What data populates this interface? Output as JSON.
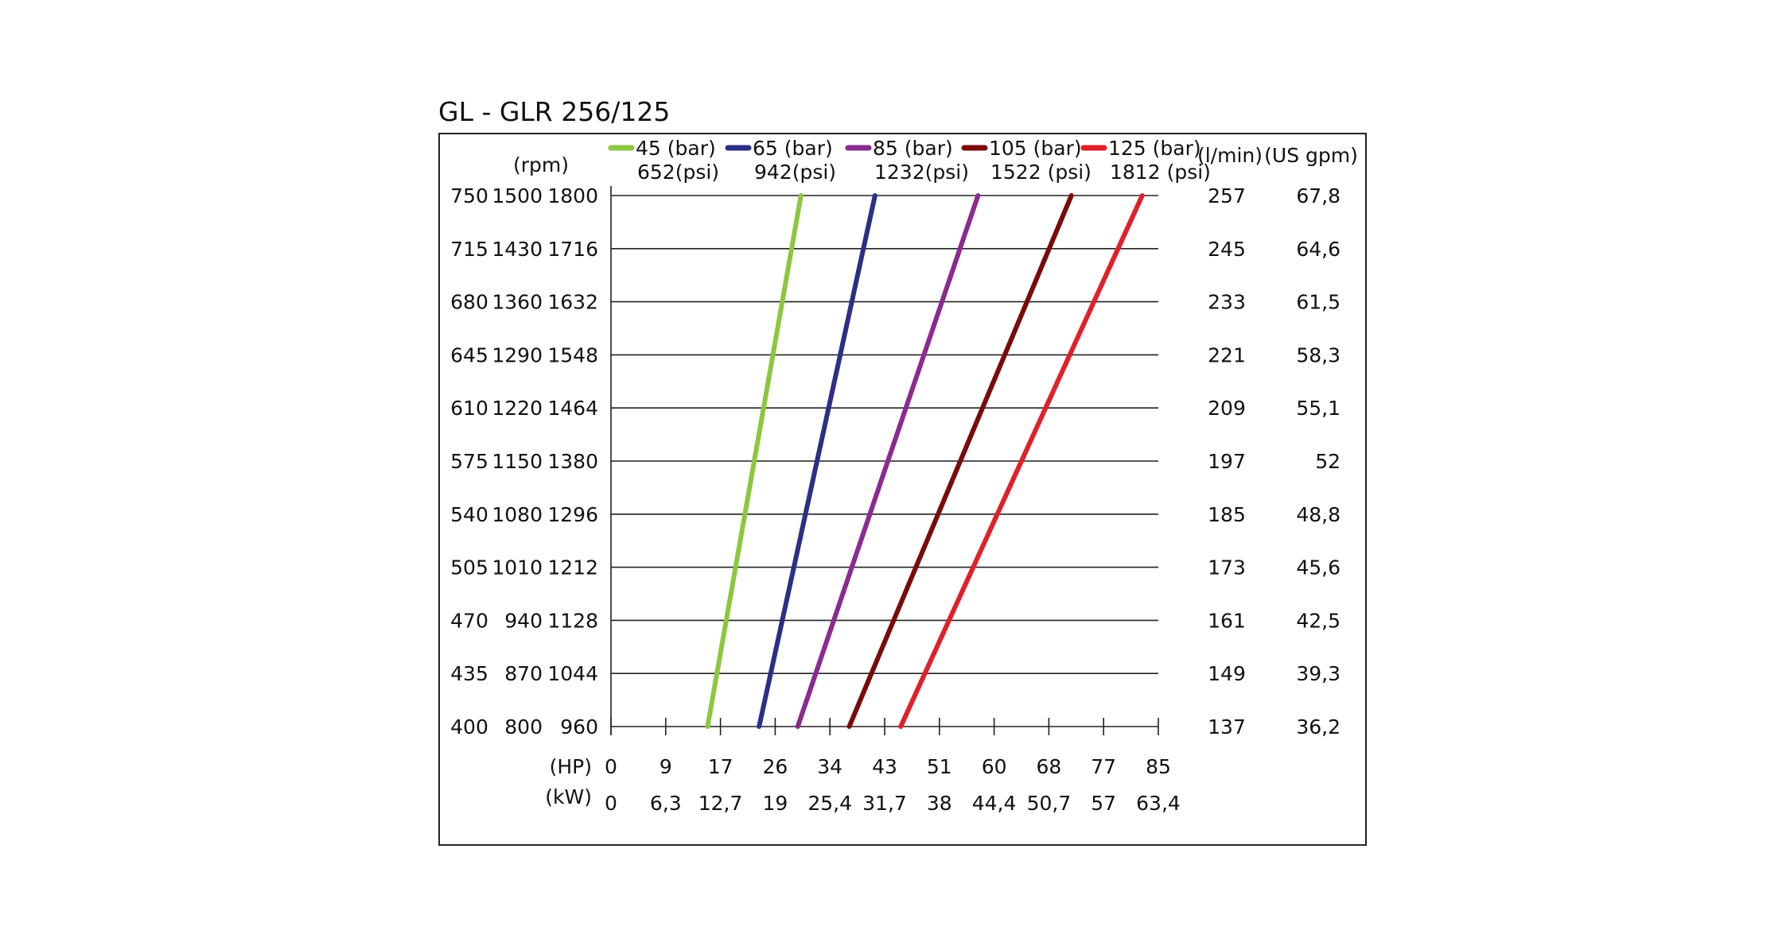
{
  "chart_data": {
    "type": "line",
    "title": "GL - GLR 256/125",
    "rpm_label": "(rpm)",
    "flow_lpm_label": "(l/min)",
    "flow_gpm_label": "(US gpm)",
    "hp_label": "(HP)",
    "kw_label": "(kW)",
    "rpm_col1": [
      "750",
      "715",
      "680",
      "645",
      "610",
      "575",
      "540",
      "505",
      "470",
      "435",
      "400"
    ],
    "rpm_col2": [
      "1500",
      "1430",
      "1360",
      "1290",
      "1220",
      "1150",
      "1080",
      "1010",
      "940",
      "870",
      "800"
    ],
    "rpm_col3": [
      "1800",
      "1716",
      "1632",
      "1548",
      "1464",
      "1380",
      "1296",
      "1212",
      "1128",
      "1044",
      "960"
    ],
    "flow_lpm": [
      "257",
      "245",
      "233",
      "221",
      "209",
      "197",
      "185",
      "173",
      "161",
      "149",
      "137"
    ],
    "flow_gpm": [
      "67,8",
      "64,6",
      "61,5",
      "58,3",
      "55,1",
      "52",
      "48,8",
      "45,6",
      "42,5",
      "39,3",
      "36,2"
    ],
    "hp_ticks": [
      "0",
      "9",
      "17",
      "26",
      "34",
      "43",
      "51",
      "60",
      "68",
      "77",
      "85"
    ],
    "kw_ticks": [
      "0",
      "6,3",
      "12,7",
      "19",
      "25,4",
      "31,7",
      "38",
      "44,4",
      "50,7",
      "57",
      "63,4"
    ],
    "xlim": [
      0,
      85
    ],
    "ylim": [
      960,
      1800
    ],
    "grid": true,
    "legend_position": "top",
    "series": [
      {
        "name": "45 (bar)",
        "name2": "652(psi)",
        "color": "#8DC63F",
        "x": [
          15.0,
          29.5
        ],
        "y": [
          960,
          1800
        ]
      },
      {
        "name": "65 (bar)",
        "name2": "942(psi)",
        "color": "#2B2F86",
        "x": [
          23.0,
          41.0
        ],
        "y": [
          960,
          1800
        ]
      },
      {
        "name": "85 (bar)",
        "name2": "1232(psi)",
        "color": "#8B2A8F",
        "x": [
          29.0,
          57.0
        ],
        "y": [
          960,
          1800
        ]
      },
      {
        "name": "105 (bar)",
        "name2": "1522 (psi)",
        "color": "#7B0A0A",
        "x": [
          37.0,
          71.5
        ],
        "y": [
          960,
          1800
        ]
      },
      {
        "name": "125 (bar)",
        "name2": "1812 (psi)",
        "color": "#E0202A",
        "x": [
          45.0,
          82.5
        ],
        "y": [
          960,
          1800
        ]
      }
    ]
  }
}
